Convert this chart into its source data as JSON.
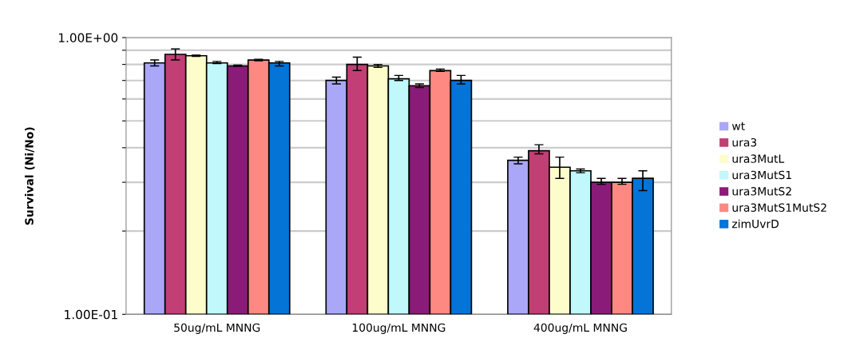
{
  "chart_data": {
    "type": "bar",
    "ylabel": "Survival (Ni/No)",
    "categories": [
      "50ug/mL MNNG",
      "100ug/mL MNNG",
      "400ug/mL MNNG"
    ],
    "series": [
      {
        "name": "wt",
        "color": "#aaa6f8",
        "values": [
          0.81,
          0.7,
          0.36
        ],
        "errors": [
          [
            0.79,
            0.83
          ],
          [
            0.68,
            0.72
          ],
          [
            0.35,
            0.37
          ]
        ]
      },
      {
        "name": "ura3",
        "color": "#c13f74",
        "values": [
          0.87,
          0.8,
          0.39
        ],
        "errors": [
          [
            0.83,
            0.91
          ],
          [
            0.76,
            0.85
          ],
          [
            0.38,
            0.41
          ]
        ]
      },
      {
        "name": "ura3MutL",
        "color": "#fdfdcb",
        "values": [
          0.86,
          0.79,
          0.34
        ],
        "errors": [
          [
            0.855,
            0.865
          ],
          [
            0.78,
            0.8
          ],
          [
            0.31,
            0.37
          ]
        ]
      },
      {
        "name": "ura3MutS1",
        "color": "#c0f8fb",
        "values": [
          0.81,
          0.71,
          0.33
        ],
        "errors": [
          [
            0.805,
            0.82
          ],
          [
            0.7,
            0.73
          ],
          [
            0.325,
            0.335
          ]
        ]
      },
      {
        "name": "ura3MutS2",
        "color": "#8a1b78",
        "values": [
          0.79,
          0.67,
          0.3
        ],
        "errors": [
          [
            0.787,
            0.795
          ],
          [
            0.66,
            0.68
          ],
          [
            0.295,
            0.31
          ]
        ]
      },
      {
        "name": "ura3MutS1MutS2",
        "color": "#fe8983",
        "values": [
          0.83,
          0.76,
          0.3
        ],
        "errors": [
          [
            0.825,
            0.835
          ],
          [
            0.755,
            0.77
          ],
          [
            0.295,
            0.31
          ]
        ]
      },
      {
        "name": "zimUvrD",
        "color": "#0474d7",
        "values": [
          0.81,
          0.7,
          0.31
        ],
        "errors": [
          [
            0.79,
            0.82
          ],
          [
            0.68,
            0.73
          ],
          [
            0.28,
            0.33
          ]
        ]
      }
    ],
    "log": true,
    "ylim": [
      0.1,
      1.0
    ],
    "yticks": [
      {
        "value": 0.1,
        "label": "1.00E-01"
      },
      {
        "value": 0.2,
        "label": null
      },
      {
        "value": 0.3,
        "label": null
      },
      {
        "value": 0.4,
        "label": null
      },
      {
        "value": 0.5,
        "label": null
      },
      {
        "value": 0.6,
        "label": null
      },
      {
        "value": 0.7,
        "label": null
      },
      {
        "value": 0.8,
        "label": null
      },
      {
        "value": 0.9,
        "label": null
      },
      {
        "value": 1.0,
        "label": "1.00E+00"
      }
    ],
    "grid": "y",
    "legend": "right"
  }
}
